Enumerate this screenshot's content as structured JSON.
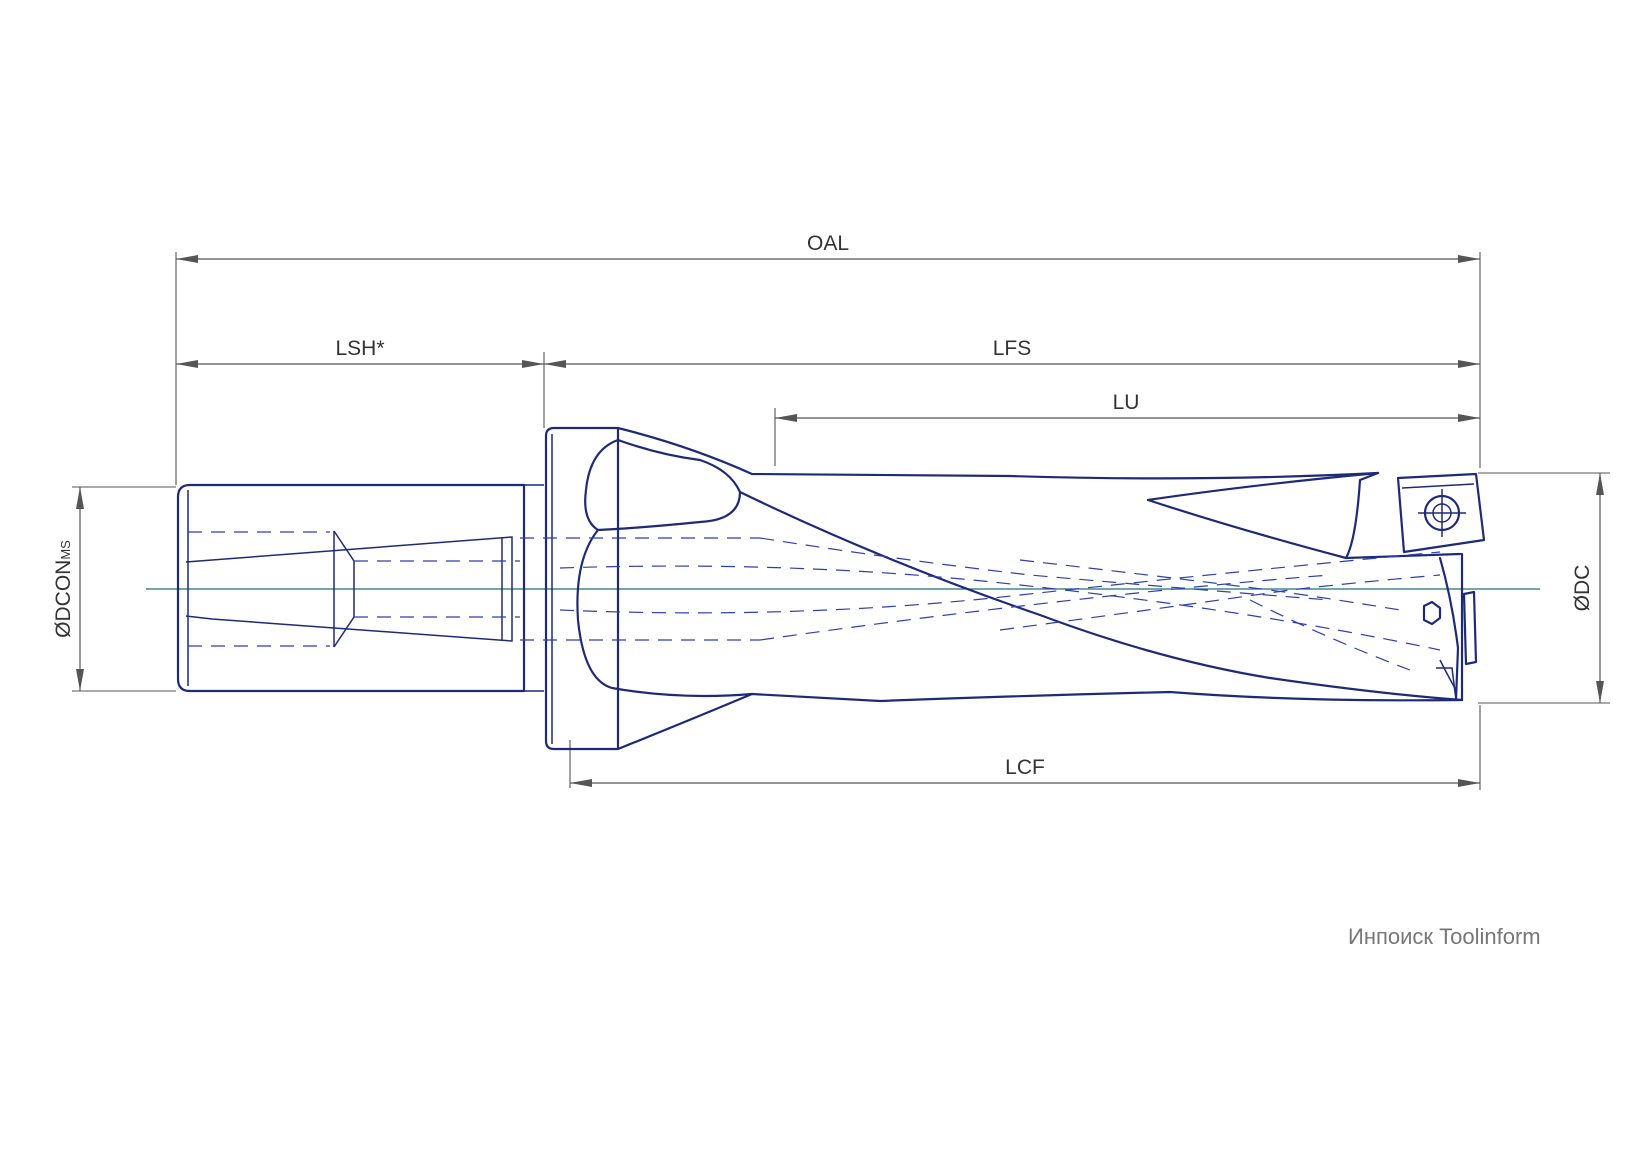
{
  "dimensions": {
    "oal": "OAL",
    "lsh": "LSH*",
    "lfs": "LFS",
    "lu": "LU",
    "lcf": "LCF",
    "dcon_main": "ØDCON",
    "dcon_sub": "MS",
    "dc": "ØDC"
  },
  "credit": "Инпоиск Toolinform",
  "colors": {
    "outline": "#1e2a78",
    "hidden": "#2e3fb0",
    "centerline": "#1f6f7a",
    "dimension": "#555555"
  }
}
